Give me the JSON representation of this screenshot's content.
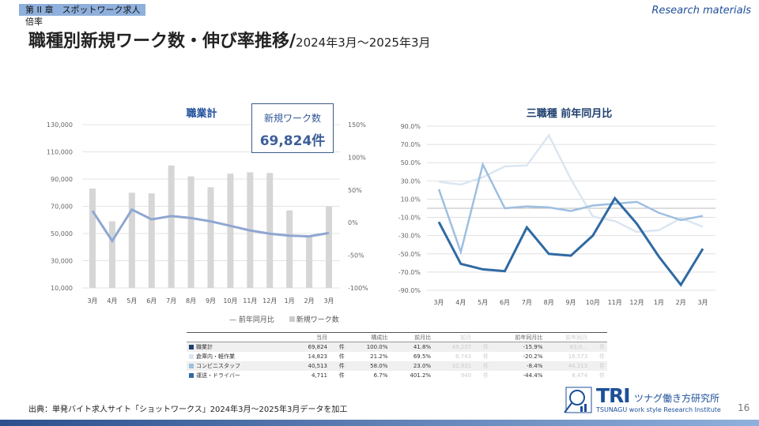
{
  "header": {
    "chapter": "第 II 章　スポットワーク求人倍率",
    "corner": "Research materials",
    "title": "職種別新規ワーク数・伸び率推移/",
    "period": "2024年3月～2025年3月"
  },
  "kpi": {
    "label": "新規ワーク数",
    "value": "69,824件"
  },
  "colors": {
    "bar": "#d6d6d6",
    "line_total": "#8fa6d1",
    "dark": "#2f6aa3",
    "medium": "#9ebfe0",
    "light": "#dbe6f2"
  },
  "chart_data": [
    {
      "type": "bar",
      "title": "職業計",
      "categories": [
        "3月",
        "4月",
        "5月",
        "6月",
        "7月",
        "8月",
        "9月",
        "10月",
        "11月",
        "12月",
        "1月",
        "2月",
        "3月"
      ],
      "series": [
        {
          "name": "新規ワーク数",
          "type": "bar",
          "axis": "left",
          "values": [
            83000,
            59000,
            80000,
            79500,
            100000,
            92000,
            84000,
            94000,
            95000,
            94500,
            67000,
            48000,
            69824
          ]
        },
        {
          "name": "前年同月比",
          "type": "line",
          "axis": "right",
          "values": [
            18,
            -28,
            20,
            5,
            10,
            7,
            2,
            -5,
            -12,
            -17,
            -20,
            -21,
            -15.9
          ]
        }
      ],
      "ylim": [
        10000,
        130000
      ],
      "yticks": [
        "10,000",
        "30,000",
        "50,000",
        "70,000",
        "90,000",
        "110,000",
        "130,000"
      ],
      "y2lim": [
        -100,
        150
      ],
      "y2ticks": [
        "-100%",
        "-50%",
        "0%",
        "50%",
        "100%",
        "150%"
      ],
      "legend": "bottom-right"
    },
    {
      "type": "line",
      "title": "三職種 前年同月比",
      "categories": [
        "3月",
        "4月",
        "5月",
        "6月",
        "7月",
        "8月",
        "9月",
        "10月",
        "11月",
        "12月",
        "1月",
        "2月",
        "3月"
      ],
      "series": [
        {
          "name": "倉庫内・軽作業",
          "values": [
            29,
            26,
            34,
            46,
            47,
            80,
            32,
            -9,
            -14,
            -26,
            -24,
            -11,
            -20.2
          ]
        },
        {
          "name": "コンビニスタッフ",
          "values": [
            21,
            -48,
            48,
            0,
            2,
            1,
            -3,
            3,
            5,
            7,
            -5,
            -13,
            -8.4
          ]
        },
        {
          "name": "運送・ドライバー",
          "values": [
            -15,
            -61,
            -67,
            -69,
            -21,
            -50,
            -52,
            -30,
            11,
            -17,
            -53,
            -84,
            -44.4
          ]
        }
      ],
      "ylim": [
        -90,
        90
      ],
      "yticks": [
        "-90.0%",
        "-70.0%",
        "-50.0%",
        "-30.0%",
        "-10.0%",
        "10.0%",
        "30.0%",
        "50.0%",
        "70.0%",
        "90.0%"
      ]
    }
  ],
  "table": {
    "headers": [
      "",
      "当月",
      "",
      "構成比",
      "前月比",
      "前月",
      "",
      "前年同月比",
      "前年同月",
      ""
    ],
    "rows": [
      {
        "name": "職業計",
        "cur": "69,824",
        "u1": "件",
        "share": "100.0%",
        "mom": "41.8%",
        "prev": "49,237",
        "u2": "件",
        "yoy": "-15.9%",
        "ly": "83,0…",
        "u3": "件",
        "color": "#1f3f6e"
      },
      {
        "name": "倉庫内・軽作業",
        "cur": "14,823",
        "u1": "件",
        "share": "21.2%",
        "mom": "69.5%",
        "prev": "8,743",
        "u2": "件",
        "yoy": "-20.2%",
        "ly": "18,573",
        "u3": "件",
        "color": "#dbe6f2"
      },
      {
        "name": "コンビニスタッフ",
        "cur": "40,513",
        "u1": "件",
        "share": "58.0%",
        "mom": "23.0%",
        "prev": "32,931",
        "u2": "件",
        "yoy": "-8.4%",
        "ly": "44,213",
        "u3": "件",
        "color": "#9ebfe0"
      },
      {
        "name": "運送・ドライバー",
        "cur": "4,711",
        "u1": "件",
        "share": "6.7%",
        "mom": "401.2%",
        "prev": "940",
        "u2": "件",
        "yoy": "-44.4%",
        "ly": "8,474",
        "u3": "件",
        "color": "#2f6aa3"
      }
    ]
  },
  "footer": {
    "source": "出典：単発バイト求人サイト「ショットワークス」2024年3月～2025年3月データを加工",
    "logo_tri": "TRI",
    "logo_jp": "ツナグ働き方研究所",
    "logo_en": "TSUNAGU work style Research Institute",
    "page": "16"
  }
}
